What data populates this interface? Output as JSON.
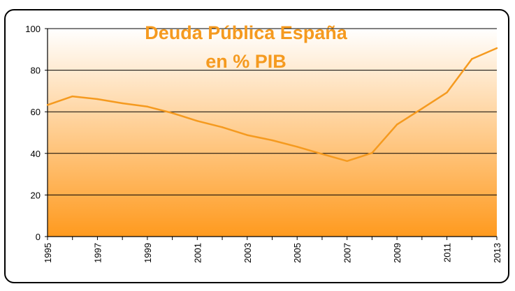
{
  "chart_data": {
    "type": "line",
    "title": "Deuda Pública España",
    "subtitle": "en % PIB",
    "xlabel": "",
    "ylabel": "",
    "x": [
      1995,
      1996,
      1997,
      1998,
      1999,
      2000,
      2001,
      2002,
      2003,
      2004,
      2005,
      2006,
      2007,
      2008,
      2009,
      2010,
      2011,
      2012,
      2013
    ],
    "series": [
      {
        "values": [
          63.3,
          67.4,
          66.1,
          64.1,
          62.5,
          59.4,
          55.6,
          52.6,
          48.8,
          46.3,
          43.2,
          39.7,
          36.3,
          40.2,
          53.9,
          61.5,
          69.3,
          85.4,
          90.6
        ]
      }
    ],
    "xticks": [
      "1995",
      "1997",
      "1999",
      "2001",
      "2003",
      "2005",
      "2007",
      "2009",
      "2011",
      "2013"
    ],
    "yticks": [
      "0",
      "20",
      "40",
      "60",
      "80",
      "100"
    ],
    "ylim": [
      0,
      100
    ],
    "grid": "horizontal",
    "legend": "none",
    "colors": {
      "line": "#F59A1F",
      "title": "#F59A1F",
      "plot_bg_top": "#FFFFFF",
      "plot_bg_bottom": "#FF9A1E",
      "grid": "#000000"
    }
  }
}
